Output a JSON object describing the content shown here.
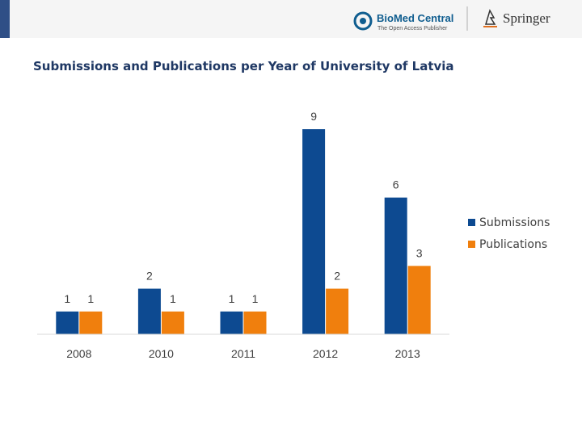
{
  "header": {
    "biomed_brand": "BioMed Central",
    "biomed_tagline": "The Open Access Publisher",
    "springer_brand": "Springer"
  },
  "chart_data": {
    "type": "bar",
    "title": "Submissions and Publications per Year of University of Latvia",
    "categories": [
      "2008",
      "2010",
      "2011",
      "2012",
      "2013"
    ],
    "series": [
      {
        "name": "Submissions",
        "color": "#0d4a91",
        "values": [
          1,
          2,
          1,
          9,
          6
        ]
      },
      {
        "name": "Publications",
        "color": "#f07f0d",
        "values": [
          1,
          1,
          1,
          2,
          3
        ]
      }
    ],
    "xlabel": "",
    "ylabel": "",
    "ylim": [
      0,
      9
    ],
    "grid": false,
    "legend": "right"
  }
}
